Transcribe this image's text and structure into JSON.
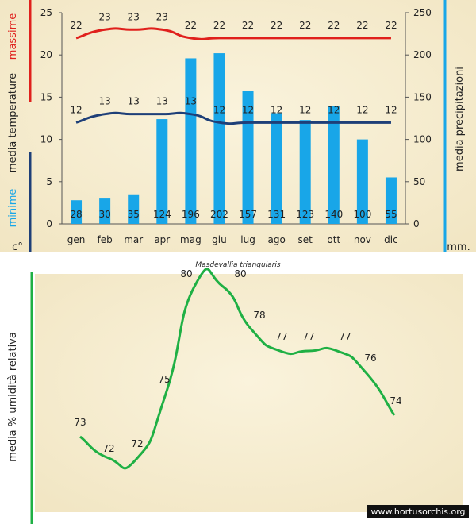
{
  "labels": {
    "temp_max": "massime",
    "temp_main": "media  temperature",
    "temp_min": "minime",
    "temp_unit": "c°",
    "precip_title": "media  precipitazioni",
    "precip_unit": "mm.",
    "humidity_title": "media %  umidità relativa",
    "caption": "Masdevallia triangularis",
    "credit": "www.hortusorchis.org"
  },
  "colors": {
    "max_line": "#e0201c",
    "min_line": "#1e3f78",
    "bars": "#18a6e8",
    "humidity_line": "#1fb044",
    "precip_axis": "#18a6e8",
    "paper": "#f6eed2",
    "text": "#222222"
  },
  "chart_data": [
    {
      "type": "bar+line",
      "title": "Masdevallia triangularis",
      "categories": [
        "gen",
        "feb",
        "mar",
        "apr",
        "mag",
        "giu",
        "lug",
        "ago",
        "set",
        "ott",
        "nov",
        "dic"
      ],
      "left_axis": {
        "ylim": [
          0,
          25
        ],
        "ticks": [
          0,
          5,
          10,
          15,
          20,
          25
        ],
        "label": "media  temperature",
        "unit": "c°"
      },
      "right_axis": {
        "ylim": [
          0,
          250
        ],
        "ticks": [
          0,
          50,
          100,
          150,
          200,
          250
        ],
        "label": "media  precipitazioni",
        "unit": "mm."
      },
      "series": [
        {
          "name": "massime",
          "kind": "line",
          "axis": "left",
          "values": [
            22,
            23,
            23,
            23,
            22,
            22,
            22,
            22,
            22,
            22,
            22,
            22
          ]
        },
        {
          "name": "minime",
          "kind": "line",
          "axis": "left",
          "values": [
            12,
            13,
            13,
            13,
            13,
            12,
            12,
            12,
            12,
            12,
            12,
            12
          ]
        },
        {
          "name": "precipitazioni",
          "kind": "bar",
          "axis": "right",
          "values": [
            28,
            30,
            35,
            124,
            196,
            202,
            157,
            131,
            123,
            140,
            100,
            55
          ]
        }
      ],
      "grid": false,
      "legend": "none"
    },
    {
      "type": "line",
      "title": "",
      "categories": [
        "gen",
        "feb",
        "mar",
        "apr",
        "mag",
        "giu",
        "lug",
        "ago",
        "set",
        "ott",
        "nov",
        "dic"
      ],
      "series": [
        {
          "name": "umidità relativa",
          "values": [
            73,
            72,
            72,
            75,
            80,
            80,
            78,
            77,
            77,
            77,
            76,
            74
          ]
        }
      ],
      "ylabel": "media %  umidità relativa",
      "grid": false,
      "legend": "none"
    }
  ]
}
